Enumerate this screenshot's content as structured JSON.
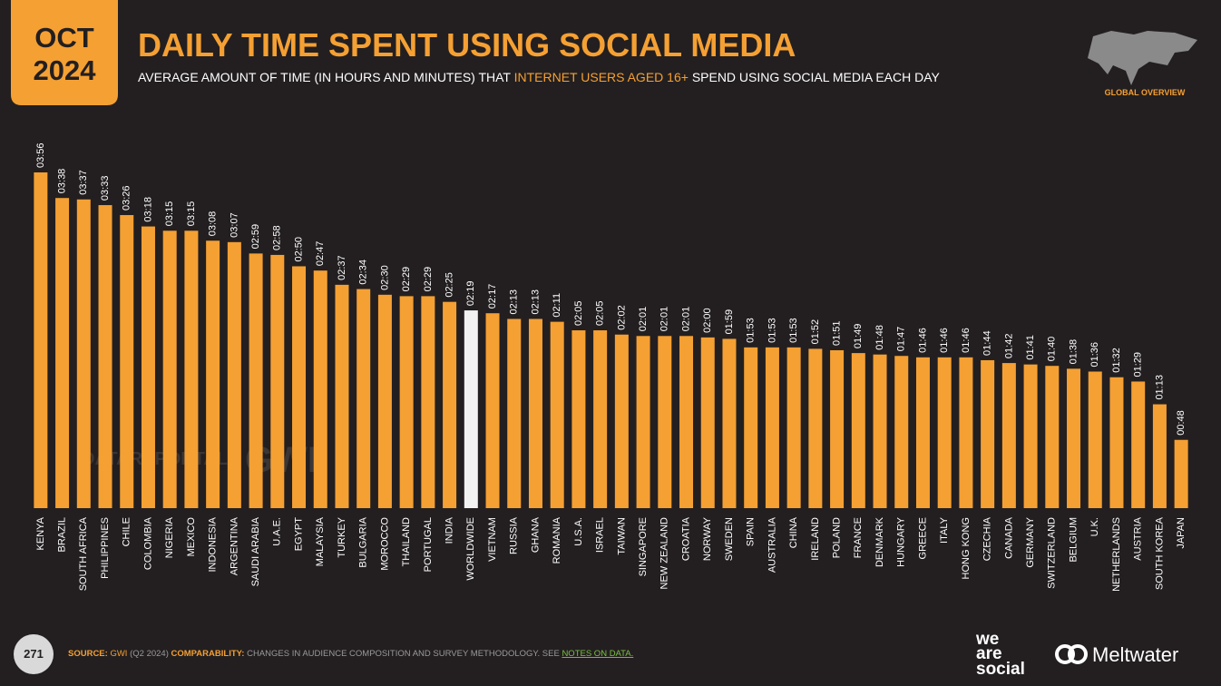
{
  "header": {
    "month": "OCT",
    "year": "2024",
    "section": "GLOBAL OVERVIEW"
  },
  "chart_data": {
    "type": "bar",
    "title": "DAILY TIME SPENT USING SOCIAL MEDIA",
    "subtitle": {
      "before": "AVERAGE AMOUNT OF TIME (IN HOURS AND MINUTES) THAT",
      "highlight": "INTERNET USERS AGED 16+",
      "after": "SPEND USING SOCIAL MEDIA EACH DAY"
    },
    "categories": [
      "KENYA",
      "BRAZIL",
      "SOUTH AFRICA",
      "PHILIPPINES",
      "CHILE",
      "COLOMBIA",
      "NIGERIA",
      "MEXICO",
      "INDONESIA",
      "ARGENTINA",
      "SAUDI ARABIA",
      "U.A.E.",
      "EGYPT",
      "MALAYSIA",
      "TURKEY",
      "BULGARIA",
      "MOROCCO",
      "THAILAND",
      "PORTUGAL",
      "INDIA",
      "WORLDWIDE",
      "VIETNAM",
      "RUSSIA",
      "GHANA",
      "ROMANIA",
      "U.S.A.",
      "ISRAEL",
      "TAIWAN",
      "SINGAPORE",
      "NEW ZEALAND",
      "CROATIA",
      "NORWAY",
      "SWEDEN",
      "SPAIN",
      "AUSTRALIA",
      "CHINA",
      "IRELAND",
      "POLAND",
      "FRANCE",
      "DENMARK",
      "HUNGARY",
      "GREECE",
      "ITALY",
      "HONG KONG",
      "CZECHIA",
      "CANADA",
      "GERMANY",
      "SWITZERLAND",
      "BELGIUM",
      "U.K.",
      "NETHERLANDS",
      "AUSTRIA",
      "SOUTH KOREA",
      "JAPAN"
    ],
    "values": [
      236,
      218,
      217,
      213,
      206,
      198,
      195,
      195,
      188,
      187,
      179,
      178,
      170,
      167,
      157,
      154,
      150,
      149,
      149,
      145,
      139,
      137,
      133,
      133,
      131,
      125,
      125,
      122,
      121,
      121,
      121,
      120,
      119,
      113,
      113,
      113,
      112,
      111,
      109,
      108,
      107,
      106,
      106,
      106,
      104,
      102,
      101,
      100,
      98,
      96,
      92,
      89,
      73,
      48
    ],
    "value_labels": [
      "03:56",
      "03:38",
      "03:37",
      "03:33",
      "03:26",
      "03:18",
      "03:15",
      "03:15",
      "03:08",
      "03:07",
      "02:59",
      "02:58",
      "02:50",
      "02:47",
      "02:37",
      "02:34",
      "02:30",
      "02:29",
      "02:29",
      "02:25",
      "02:19",
      "02:17",
      "02:13",
      "02:13",
      "02:11",
      "02:05",
      "02:05",
      "02:02",
      "02:01",
      "02:01",
      "02:01",
      "02:00",
      "01:59",
      "01:53",
      "01:53",
      "01:53",
      "01:52",
      "01:51",
      "01:49",
      "01:48",
      "01:47",
      "01:46",
      "01:46",
      "01:46",
      "01:44",
      "01:42",
      "01:41",
      "01:40",
      "01:38",
      "01:36",
      "01:32",
      "01:29",
      "01:13",
      "00:48"
    ],
    "color": "#f5a033",
    "highlight_color": "#f2f2f2",
    "highlight_index": 20
  },
  "watermarks": [
    "DATAREPORTAL",
    "GWI."
  ],
  "footer": {
    "page": "271",
    "source_label": "SOURCE:",
    "source": "GWI",
    "source_note": "(Q2 2024)",
    "comparability_label": "COMPARABILITY:",
    "comparability": "CHANGES IN AUDIENCE COMPOSITION AND SURVEY METHODOLOGY. SEE",
    "notes_link": "NOTES ON DATA.",
    "brand1": [
      "we",
      "are",
      "social"
    ],
    "brand2": "Meltwater"
  }
}
